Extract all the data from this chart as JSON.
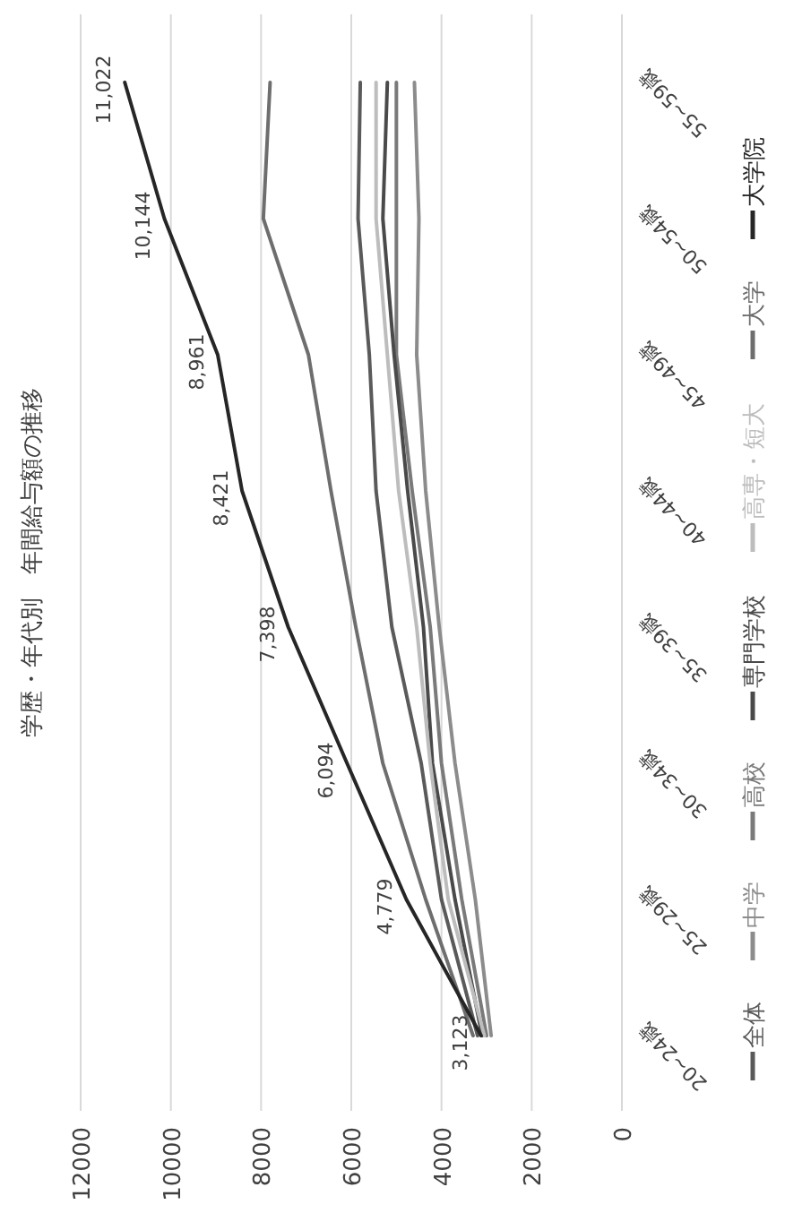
{
  "chart_data": {
    "type": "line",
    "title": "学歴・年代別　年間給与額の推移",
    "orientation": "horizontal",
    "categories": [
      "55~59歳",
      "50~54歳",
      "45~49歳",
      "40~44歳",
      "35~39歳",
      "30~34歳",
      "25~29歳",
      "20~24歳"
    ],
    "series": [
      {
        "name": "全体",
        "color": "#5a5a5a",
        "values": [
          5800,
          5850,
          5600,
          5450,
          5100,
          4450,
          4000,
          3200
        ]
      },
      {
        "name": "中学",
        "color": "#8c8c8c",
        "values": [
          4600,
          4500,
          4550,
          4350,
          4050,
          3700,
          3250,
          2900
        ]
      },
      {
        "name": "高校",
        "color": "#7a7a7a",
        "values": [
          5000,
          5000,
          5000,
          4650,
          4250,
          4000,
          3550,
          3000
        ]
      },
      {
        "name": "専門学校",
        "color": "#4a4a4a",
        "values": [
          5200,
          5300,
          5050,
          4750,
          4400,
          4200,
          3700,
          3100
        ]
      },
      {
        "name": "高専・短大",
        "color": "#bdbdbd",
        "values": [
          5450,
          5450,
          5200,
          4950,
          4550,
          4250,
          3850,
          3050
        ]
      },
      {
        "name": "大学",
        "color": "#6e6e6e",
        "values": [
          7800,
          7950,
          6950,
          6450,
          5900,
          5300,
          4350,
          3300
        ]
      },
      {
        "name": "大学院",
        "color": "#262626",
        "values": [
          11022,
          10144,
          8961,
          8421,
          7398,
          6094,
          4779,
          3123
        ],
        "value_labels": [
          "11,022",
          "10,144",
          "8,961",
          "8,421",
          "7,398",
          "6,094",
          "4,779",
          "3,123"
        ]
      }
    ],
    "xlim": [
      12000,
      0
    ],
    "xticks": [
      0,
      2000,
      4000,
      6000,
      8000,
      10000,
      12000
    ],
    "grid": true,
    "legend": "right"
  }
}
